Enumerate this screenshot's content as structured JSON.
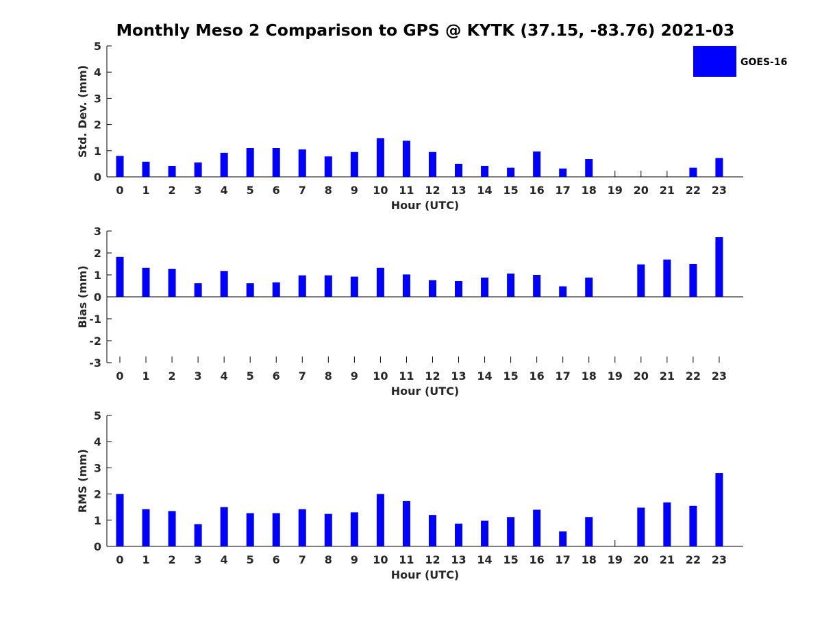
{
  "title": "Monthly Meso 2 Comparison to GPS @ KYTK (37.15, -83.76) 2021-03",
  "legend": {
    "label": "GOES-16",
    "color": "#0000ff",
    "placement": "top-right"
  },
  "chart_data": [
    {
      "type": "bar",
      "ylabel": "Std. Dev. (mm)",
      "xlabel": "Hour (UTC)",
      "ylim": [
        0,
        5
      ],
      "yticks": [
        0,
        1,
        2,
        3,
        4,
        5
      ],
      "categories": [
        "0",
        "1",
        "2",
        "3",
        "4",
        "5",
        "6",
        "7",
        "8",
        "9",
        "10",
        "11",
        "12",
        "13",
        "14",
        "15",
        "16",
        "17",
        "18",
        "19",
        "20",
        "21",
        "22",
        "23"
      ],
      "series": [
        {
          "name": "GOES-16",
          "color": "#0000ff",
          "values": [
            0.8,
            0.58,
            0.42,
            0.55,
            0.92,
            1.1,
            1.1,
            1.05,
            0.78,
            0.95,
            1.48,
            1.38,
            0.95,
            0.5,
            0.42,
            0.35,
            0.97,
            0.32,
            0.68,
            null,
            null,
            null,
            0.35,
            0.72
          ]
        }
      ]
    },
    {
      "type": "bar",
      "ylabel": "Bias (mm)",
      "xlabel": "Hour (UTC)",
      "ylim": [
        -3,
        3
      ],
      "yticks": [
        -3,
        -2,
        -1,
        0,
        1,
        2,
        3
      ],
      "categories": [
        "0",
        "1",
        "2",
        "3",
        "4",
        "5",
        "6",
        "7",
        "8",
        "9",
        "10",
        "11",
        "12",
        "13",
        "14",
        "15",
        "16",
        "17",
        "18",
        "19",
        "20",
        "21",
        "22",
        "23"
      ],
      "series": [
        {
          "name": "GOES-16",
          "color": "#0000ff",
          "values": [
            1.82,
            1.32,
            1.28,
            0.62,
            1.18,
            0.62,
            0.66,
            0.98,
            0.98,
            0.92,
            1.32,
            1.02,
            0.76,
            0.72,
            0.88,
            1.06,
            1.0,
            0.48,
            0.88,
            null,
            1.48,
            1.7,
            1.5,
            2.72
          ]
        }
      ]
    },
    {
      "type": "bar",
      "ylabel": "RMS (mm)",
      "xlabel": "Hour (UTC)",
      "ylim": [
        0,
        5
      ],
      "yticks": [
        0,
        1,
        2,
        3,
        4,
        5
      ],
      "categories": [
        "0",
        "1",
        "2",
        "3",
        "4",
        "5",
        "6",
        "7",
        "8",
        "9",
        "10",
        "11",
        "12",
        "13",
        "14",
        "15",
        "16",
        "17",
        "18",
        "19",
        "20",
        "21",
        "22",
        "23"
      ],
      "series": [
        {
          "name": "GOES-16",
          "color": "#0000ff",
          "values": [
            2.0,
            1.42,
            1.35,
            0.85,
            1.5,
            1.27,
            1.27,
            1.42,
            1.24,
            1.3,
            2.0,
            1.73,
            1.2,
            0.87,
            0.98,
            1.12,
            1.4,
            0.57,
            1.12,
            null,
            1.48,
            1.68,
            1.55,
            2.8
          ]
        }
      ]
    }
  ]
}
